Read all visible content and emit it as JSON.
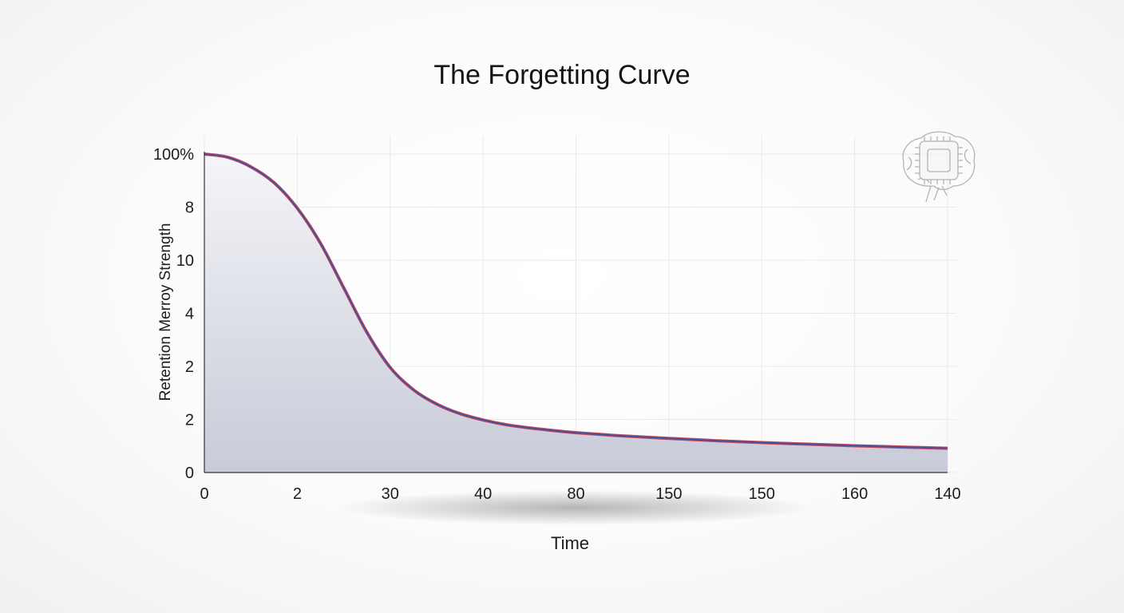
{
  "chart_data": {
    "type": "area",
    "title": "The Forgetting Curve",
    "xlabel": "Time",
    "ylabel": "Retention Merroy Strength",
    "x_tick_labels": [
      "0",
      "2",
      "30",
      "40",
      "80",
      "150",
      "150",
      "160",
      "140"
    ],
    "y_tick_labels": [
      "0",
      "2",
      "2",
      "4",
      "10",
      "8",
      "100%"
    ],
    "grid": true,
    "legend": "none",
    "series": [
      {
        "x": [
          0,
          0.25,
          0.5,
          0.75,
          1,
          1.25,
          1.5,
          1.75,
          2,
          2.25,
          2.5,
          2.75,
          3,
          3.25,
          3.5,
          3.75,
          4,
          4.5,
          5,
          5.5,
          6,
          6.5,
          7,
          7.5,
          8
        ],
        "y": [
          100,
          99,
          96,
          91,
          83,
          72,
          58,
          44,
          33,
          26,
          21.5,
          18.5,
          16.5,
          15,
          14,
          13.2,
          12.5,
          11.5,
          10.7,
          10,
          9.4,
          8.9,
          8.4,
          8,
          7.6
        ]
      }
    ],
    "xlim": [
      0,
      8
    ],
    "ylim": [
      0,
      100
    ],
    "colors": {
      "line_outer": "#c84a5a",
      "line_inner": "#4a4f9c",
      "fill_top": "#f2f3f7",
      "fill_bottom": "#c9ccd9",
      "grid": "#e9e9ec"
    },
    "icon": "brain-chip-icon"
  }
}
